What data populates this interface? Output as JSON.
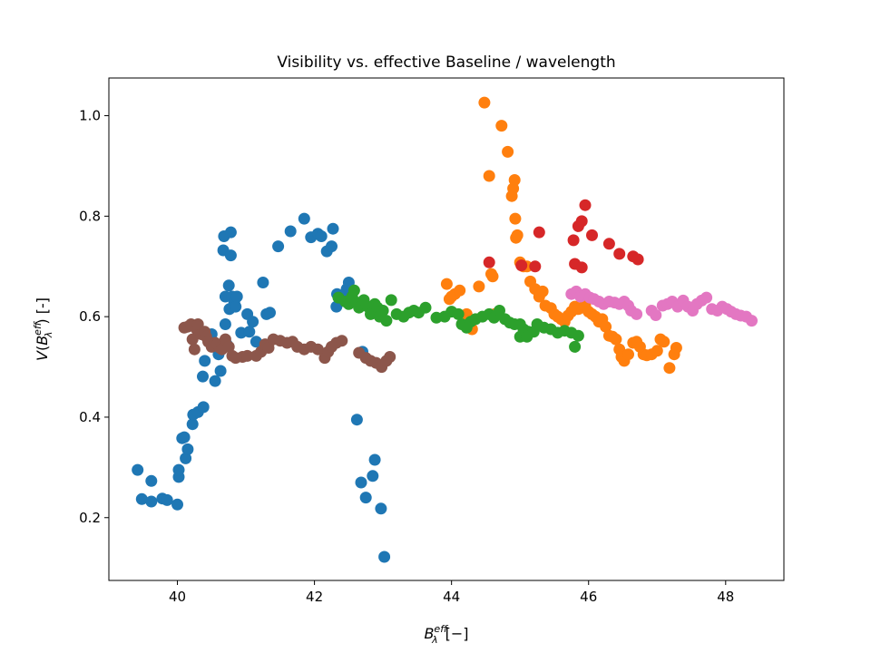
{
  "chart_data": {
    "type": "scatter",
    "title": "Visibility vs. effective Baseline / wavelength",
    "xlabel": "B_λ^eff [−]",
    "ylabel": "V(B_λ^eff) [-]",
    "xlim": [
      39.0,
      48.85
    ],
    "ylim": [
      0.075,
      1.075
    ],
    "xticks": [
      40,
      42,
      44,
      46,
      48
    ],
    "xtick_labels": [
      "40",
      "42",
      "44",
      "46",
      "48"
    ],
    "yticks": [
      0.2,
      0.4,
      0.6,
      0.8,
      1.0
    ],
    "ytick_labels": [
      "0.2",
      "0.4",
      "0.6",
      "0.8",
      "1.0"
    ],
    "grid": false,
    "legend": "none",
    "series": [
      {
        "color": "#1f77b4",
        "points": [
          [
            39.42,
            0.295
          ],
          [
            39.48,
            0.237
          ],
          [
            39.62,
            0.232
          ],
          [
            39.62,
            0.273
          ],
          [
            39.78,
            0.238
          ],
          [
            39.85,
            0.235
          ],
          [
            40.0,
            0.226
          ],
          [
            40.02,
            0.281
          ],
          [
            40.02,
            0.295
          ],
          [
            40.07,
            0.358
          ],
          [
            40.1,
            0.36
          ],
          [
            40.12,
            0.318
          ],
          [
            40.15,
            0.336
          ],
          [
            40.22,
            0.386
          ],
          [
            40.23,
            0.405
          ],
          [
            40.3,
            0.41
          ],
          [
            40.37,
            0.481
          ],
          [
            40.38,
            0.42
          ],
          [
            40.4,
            0.512
          ],
          [
            40.5,
            0.565
          ],
          [
            40.52,
            0.545
          ],
          [
            40.55,
            0.472
          ],
          [
            40.6,
            0.525
          ],
          [
            40.63,
            0.492
          ],
          [
            40.67,
            0.732
          ],
          [
            40.68,
            0.76
          ],
          [
            40.7,
            0.585
          ],
          [
            40.7,
            0.64
          ],
          [
            40.72,
            0.545
          ],
          [
            40.75,
            0.662
          ],
          [
            40.76,
            0.615
          ],
          [
            40.78,
            0.722
          ],
          [
            40.78,
            0.768
          ],
          [
            40.8,
            0.64
          ],
          [
            40.83,
            0.628
          ],
          [
            40.85,
            0.62
          ],
          [
            40.87,
            0.64
          ],
          [
            40.93,
            0.568
          ],
          [
            41.02,
            0.605
          ],
          [
            41.05,
            0.57
          ],
          [
            41.1,
            0.59
          ],
          [
            41.15,
            0.55
          ],
          [
            41.25,
            0.668
          ],
          [
            41.3,
            0.605
          ],
          [
            41.35,
            0.608
          ],
          [
            41.47,
            0.74
          ],
          [
            41.65,
            0.77
          ],
          [
            41.85,
            0.795
          ],
          [
            41.95,
            0.758
          ],
          [
            42.05,
            0.765
          ],
          [
            42.1,
            0.76
          ],
          [
            42.18,
            0.73
          ],
          [
            42.25,
            0.74
          ],
          [
            42.27,
            0.775
          ],
          [
            42.32,
            0.62
          ],
          [
            42.33,
            0.645
          ],
          [
            42.4,
            0.64
          ],
          [
            42.47,
            0.655
          ],
          [
            42.5,
            0.668
          ],
          [
            42.62,
            0.395
          ],
          [
            42.68,
            0.27
          ],
          [
            42.7,
            0.53
          ],
          [
            42.75,
            0.24
          ],
          [
            42.85,
            0.283
          ],
          [
            42.88,
            0.315
          ],
          [
            42.97,
            0.218
          ],
          [
            43.02,
            0.122
          ]
        ]
      },
      {
        "color": "#ff7f0e",
        "points": [
          [
            43.93,
            0.665
          ],
          [
            43.97,
            0.635
          ],
          [
            44.0,
            0.64
          ],
          [
            44.05,
            0.645
          ],
          [
            44.12,
            0.652
          ],
          [
            44.22,
            0.605
          ],
          [
            44.3,
            0.575
          ],
          [
            44.4,
            0.66
          ],
          [
            44.48,
            1.026
          ],
          [
            44.55,
            0.88
          ],
          [
            44.58,
            0.685
          ],
          [
            44.6,
            0.68
          ],
          [
            44.63,
            0.605
          ],
          [
            44.73,
            0.98
          ],
          [
            44.82,
            0.928
          ],
          [
            44.88,
            0.84
          ],
          [
            44.9,
            0.855
          ],
          [
            44.92,
            0.872
          ],
          [
            44.93,
            0.795
          ],
          [
            44.94,
            0.757
          ],
          [
            44.96,
            0.762
          ],
          [
            45.0,
            0.708
          ],
          [
            45.05,
            0.7
          ],
          [
            45.1,
            0.7
          ],
          [
            45.15,
            0.67
          ],
          [
            45.22,
            0.655
          ],
          [
            45.28,
            0.64
          ],
          [
            45.33,
            0.65
          ],
          [
            45.37,
            0.622
          ],
          [
            45.45,
            0.617
          ],
          [
            45.5,
            0.605
          ],
          [
            45.55,
            0.6
          ],
          [
            45.6,
            0.595
          ],
          [
            45.65,
            0.59
          ],
          [
            45.7,
            0.602
          ],
          [
            45.75,
            0.61
          ],
          [
            45.8,
            0.62
          ],
          [
            45.85,
            0.615
          ],
          [
            45.9,
            0.618
          ],
          [
            45.95,
            0.622
          ],
          [
            46.0,
            0.61
          ],
          [
            46.05,
            0.605
          ],
          [
            46.1,
            0.6
          ],
          [
            46.15,
            0.59
          ],
          [
            46.2,
            0.595
          ],
          [
            46.25,
            0.58
          ],
          [
            46.3,
            0.562
          ],
          [
            46.35,
            0.56
          ],
          [
            46.4,
            0.555
          ],
          [
            46.45,
            0.535
          ],
          [
            46.48,
            0.52
          ],
          [
            46.52,
            0.512
          ],
          [
            46.58,
            0.525
          ],
          [
            46.65,
            0.548
          ],
          [
            46.7,
            0.55
          ],
          [
            46.75,
            0.54
          ],
          [
            46.8,
            0.525
          ],
          [
            46.85,
            0.523
          ],
          [
            46.92,
            0.525
          ],
          [
            47.0,
            0.532
          ],
          [
            47.05,
            0.555
          ],
          [
            47.1,
            0.55
          ],
          [
            47.18,
            0.498
          ],
          [
            47.25,
            0.525
          ],
          [
            47.28,
            0.538
          ]
        ]
      },
      {
        "color": "#2ca02c",
        "points": [
          [
            42.35,
            0.638
          ],
          [
            42.45,
            0.63
          ],
          [
            42.5,
            0.625
          ],
          [
            42.55,
            0.64
          ],
          [
            42.58,
            0.652
          ],
          [
            42.62,
            0.628
          ],
          [
            42.65,
            0.618
          ],
          [
            42.72,
            0.633
          ],
          [
            42.78,
            0.62
          ],
          [
            42.82,
            0.605
          ],
          [
            42.88,
            0.625
          ],
          [
            42.92,
            0.618
          ],
          [
            42.95,
            0.6
          ],
          [
            43.0,
            0.612
          ],
          [
            43.05,
            0.592
          ],
          [
            43.12,
            0.633
          ],
          [
            43.2,
            0.605
          ],
          [
            43.3,
            0.6
          ],
          [
            43.38,
            0.608
          ],
          [
            43.45,
            0.612
          ],
          [
            43.52,
            0.608
          ],
          [
            43.62,
            0.618
          ],
          [
            43.78,
            0.598
          ],
          [
            43.9,
            0.6
          ],
          [
            44.0,
            0.61
          ],
          [
            44.1,
            0.605
          ],
          [
            44.15,
            0.585
          ],
          [
            44.22,
            0.578
          ],
          [
            44.28,
            0.59
          ],
          [
            44.35,
            0.595
          ],
          [
            44.45,
            0.6
          ],
          [
            44.55,
            0.605
          ],
          [
            44.62,
            0.598
          ],
          [
            44.7,
            0.612
          ],
          [
            44.78,
            0.595
          ],
          [
            44.85,
            0.588
          ],
          [
            44.92,
            0.585
          ],
          [
            45.0,
            0.585
          ],
          [
            45.05,
            0.575
          ],
          [
            45.12,
            0.57
          ],
          [
            45.2,
            0.57
          ],
          [
            45.25,
            0.585
          ],
          [
            45.35,
            0.578
          ],
          [
            45.45,
            0.575
          ],
          [
            45.55,
            0.568
          ],
          [
            45.65,
            0.572
          ],
          [
            45.75,
            0.568
          ],
          [
            45.8,
            0.54
          ],
          [
            45.85,
            0.562
          ],
          [
            45.0,
            0.56
          ],
          [
            45.1,
            0.56
          ]
        ]
      },
      {
        "color": "#d62728",
        "points": [
          [
            44.55,
            0.708
          ],
          [
            45.02,
            0.702
          ],
          [
            45.22,
            0.7
          ],
          [
            45.28,
            0.768
          ],
          [
            45.78,
            0.752
          ],
          [
            45.8,
            0.705
          ],
          [
            45.85,
            0.78
          ],
          [
            45.9,
            0.79
          ],
          [
            45.9,
            0.698
          ],
          [
            45.95,
            0.822
          ],
          [
            46.05,
            0.762
          ],
          [
            46.3,
            0.745
          ],
          [
            46.45,
            0.725
          ],
          [
            46.65,
            0.72
          ],
          [
            46.72,
            0.714
          ]
        ]
      },
      {
        "color": "#9467bd",
        "points": []
      },
      {
        "color": "#8c564b",
        "points": [
          [
            40.1,
            0.578
          ],
          [
            40.15,
            0.58
          ],
          [
            40.2,
            0.585
          ],
          [
            40.22,
            0.555
          ],
          [
            40.25,
            0.535
          ],
          [
            40.28,
            0.575
          ],
          [
            40.3,
            0.585
          ],
          [
            40.35,
            0.565
          ],
          [
            40.4,
            0.57
          ],
          [
            40.42,
            0.56
          ],
          [
            40.45,
            0.55
          ],
          [
            40.5,
            0.54
          ],
          [
            40.55,
            0.548
          ],
          [
            40.58,
            0.545
          ],
          [
            40.62,
            0.538
          ],
          [
            40.65,
            0.535
          ],
          [
            40.7,
            0.555
          ],
          [
            40.75,
            0.54
          ],
          [
            40.8,
            0.522
          ],
          [
            40.85,
            0.518
          ],
          [
            40.95,
            0.52
          ],
          [
            41.02,
            0.522
          ],
          [
            41.15,
            0.522
          ],
          [
            41.22,
            0.53
          ],
          [
            41.28,
            0.545
          ],
          [
            41.33,
            0.538
          ],
          [
            41.4,
            0.555
          ],
          [
            41.5,
            0.552
          ],
          [
            41.6,
            0.548
          ],
          [
            41.68,
            0.55
          ],
          [
            41.75,
            0.54
          ],
          [
            41.85,
            0.535
          ],
          [
            41.95,
            0.54
          ],
          [
            42.05,
            0.535
          ],
          [
            42.15,
            0.518
          ],
          [
            42.2,
            0.53
          ],
          [
            42.25,
            0.54
          ],
          [
            42.32,
            0.548
          ],
          [
            42.4,
            0.552
          ],
          [
            42.65,
            0.528
          ],
          [
            42.75,
            0.518
          ],
          [
            42.82,
            0.512
          ],
          [
            42.9,
            0.508
          ],
          [
            42.98,
            0.5
          ],
          [
            43.05,
            0.512
          ],
          [
            43.1,
            0.52
          ]
        ]
      },
      {
        "color": "#e377c2",
        "points": [
          [
            45.75,
            0.645
          ],
          [
            45.82,
            0.65
          ],
          [
            45.88,
            0.64
          ],
          [
            45.95,
            0.645
          ],
          [
            46.02,
            0.638
          ],
          [
            46.08,
            0.635
          ],
          [
            46.15,
            0.63
          ],
          [
            46.22,
            0.625
          ],
          [
            46.3,
            0.63
          ],
          [
            46.38,
            0.628
          ],
          [
            46.45,
            0.625
          ],
          [
            46.52,
            0.63
          ],
          [
            46.58,
            0.622
          ],
          [
            46.62,
            0.612
          ],
          [
            46.7,
            0.605
          ],
          [
            46.92,
            0.612
          ],
          [
            46.98,
            0.603
          ],
          [
            47.08,
            0.622
          ],
          [
            47.15,
            0.625
          ],
          [
            47.22,
            0.63
          ],
          [
            47.3,
            0.62
          ],
          [
            47.38,
            0.632
          ],
          [
            47.45,
            0.62
          ],
          [
            47.52,
            0.612
          ],
          [
            47.58,
            0.625
          ],
          [
            47.65,
            0.632
          ],
          [
            47.72,
            0.638
          ],
          [
            47.8,
            0.615
          ],
          [
            47.88,
            0.612
          ],
          [
            47.95,
            0.62
          ],
          [
            48.02,
            0.615
          ],
          [
            48.08,
            0.61
          ],
          [
            48.15,
            0.605
          ],
          [
            48.22,
            0.602
          ],
          [
            48.3,
            0.6
          ],
          [
            48.38,
            0.592
          ]
        ]
      }
    ]
  }
}
